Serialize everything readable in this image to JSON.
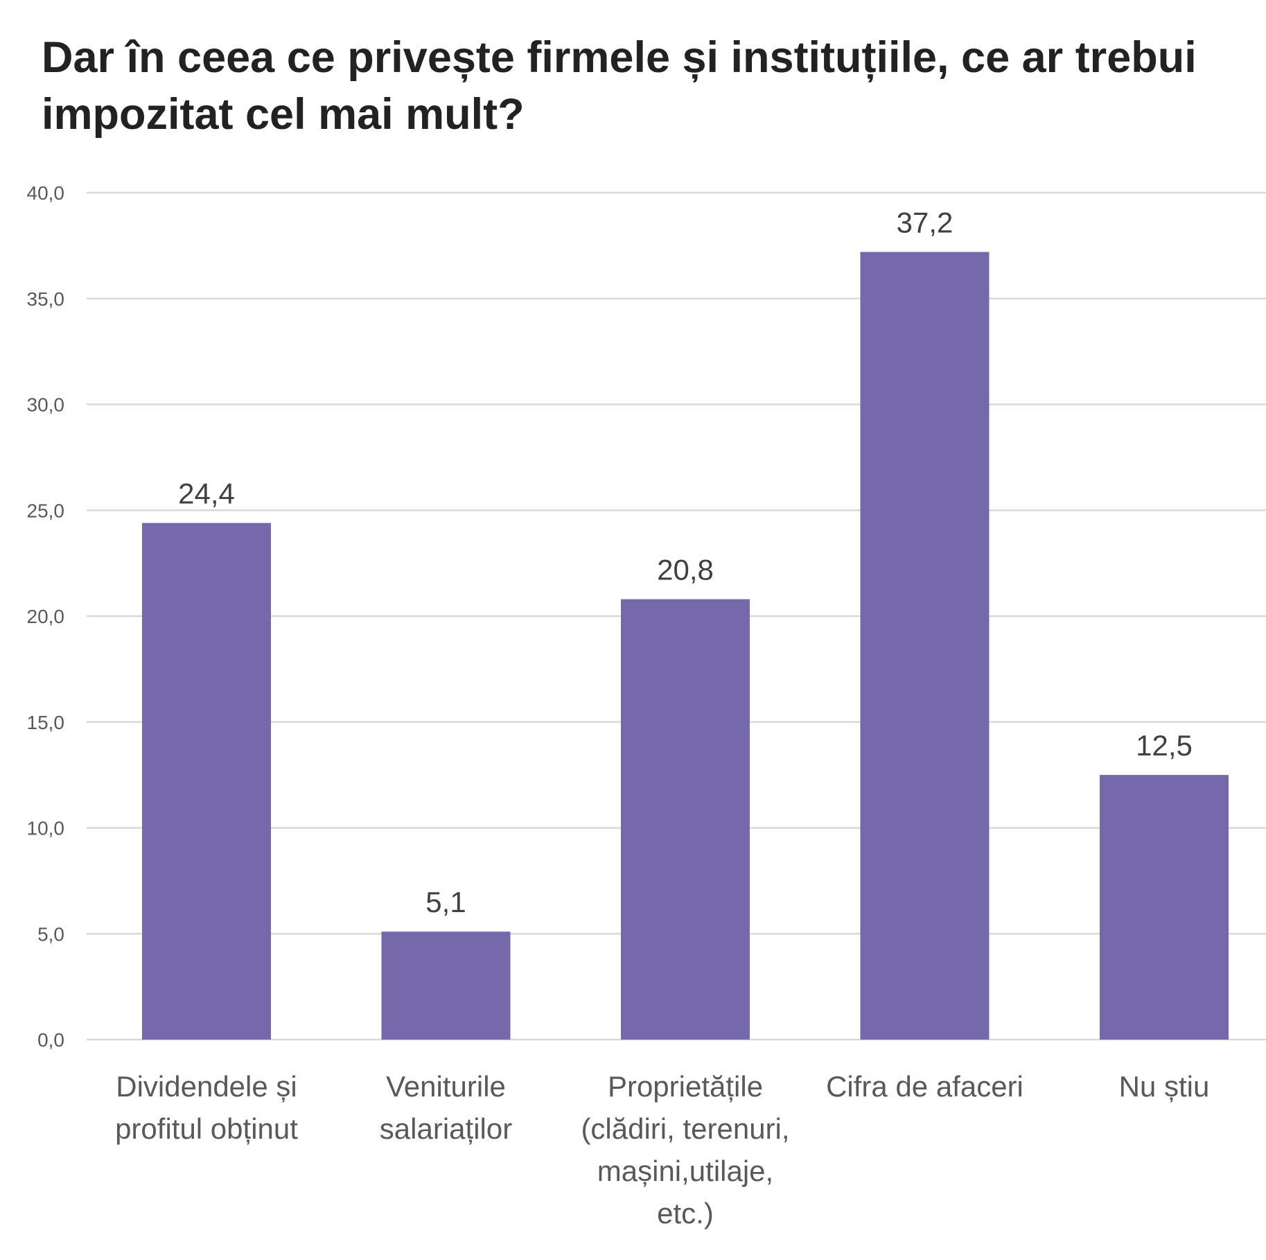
{
  "chart_data": {
    "type": "bar",
    "title": "Dar în ceea ce privește firmele și instituțiile, ce ar trebui impozitat cel mai mult?",
    "categories": [
      [
        "Dividendele și",
        "profitul obținut"
      ],
      [
        "Veniturile",
        "salariaților"
      ],
      [
        "Proprietățile",
        "(clădiri, terenuri,",
        "mașini,utilaje,",
        "etc.)"
      ],
      [
        "Cifra de afaceri"
      ],
      [
        "Nu știu"
      ]
    ],
    "values": [
      24.4,
      5.1,
      20.8,
      37.2,
      12.5
    ],
    "value_labels": [
      "24,4",
      "5,1",
      "20,8",
      "37,2",
      "12,5"
    ],
    "ylim": [
      0,
      40
    ],
    "yticks": [
      0,
      5,
      10,
      15,
      20,
      25,
      30,
      35,
      40
    ],
    "ytick_labels": [
      "0,0",
      "5,0",
      "10,0",
      "15,0",
      "20,0",
      "25,0",
      "30,0",
      "35,0",
      "40,0"
    ],
    "grid": true,
    "bar_color": "#7569AC",
    "grid_color": "#D9D9D9"
  }
}
